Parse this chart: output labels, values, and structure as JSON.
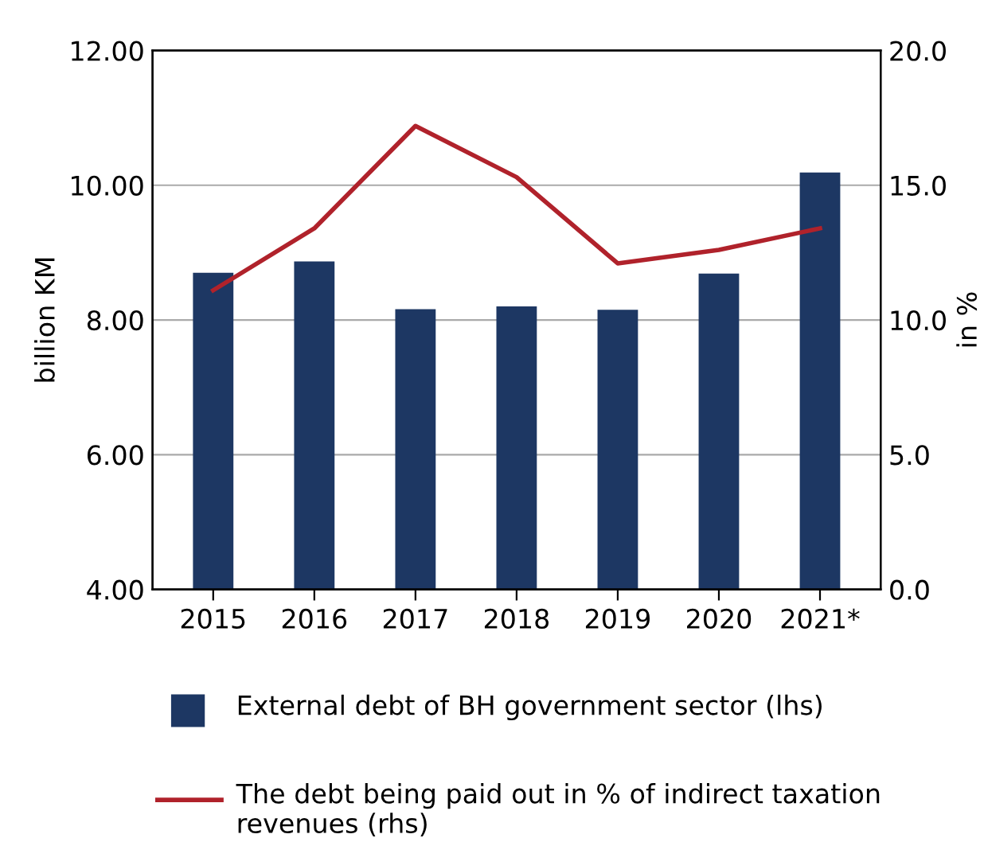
{
  "chart_data": {
    "type": "bar",
    "categories": [
      "2015",
      "2016",
      "2017",
      "2018",
      "2019",
      "2020",
      "2021*"
    ],
    "series": [
      {
        "name": "External debt of BH government sector (lhs)",
        "color": "#1d3763",
        "values": [
          8.7,
          8.87,
          8.16,
          8.2,
          8.15,
          8.69,
          10.19
        ]
      },
      {
        "name": "The debt being paid out in % of indirect taxation revenues (rhs)",
        "type": "line",
        "axis": "y2",
        "color": "#b0222b",
        "values": [
          11.1,
          13.4,
          17.2,
          15.3,
          12.1,
          12.6,
          13.4
        ]
      }
    ],
    "ylabel": "billion KM",
    "y2label": "in %",
    "ylim": [
      4,
      12
    ],
    "yticks": [
      {
        "value": 4,
        "label": "4.00"
      },
      {
        "value": 6,
        "label": "6.00"
      },
      {
        "value": 8,
        "label": "8.00"
      },
      {
        "value": 10,
        "label": "10.00"
      },
      {
        "value": 12,
        "label": "12.00"
      }
    ],
    "y2lim": [
      0,
      20
    ],
    "y2ticks": [
      {
        "value": 0,
        "label": "0.0"
      },
      {
        "value": 5,
        "label": "5.0"
      },
      {
        "value": 10,
        "label": "10.0"
      },
      {
        "value": 15,
        "label": "15.0"
      },
      {
        "value": 20,
        "label": "20.0"
      }
    ],
    "grid": "y",
    "legend": "bottom",
    "marker": "none",
    "line_style": "solid"
  }
}
